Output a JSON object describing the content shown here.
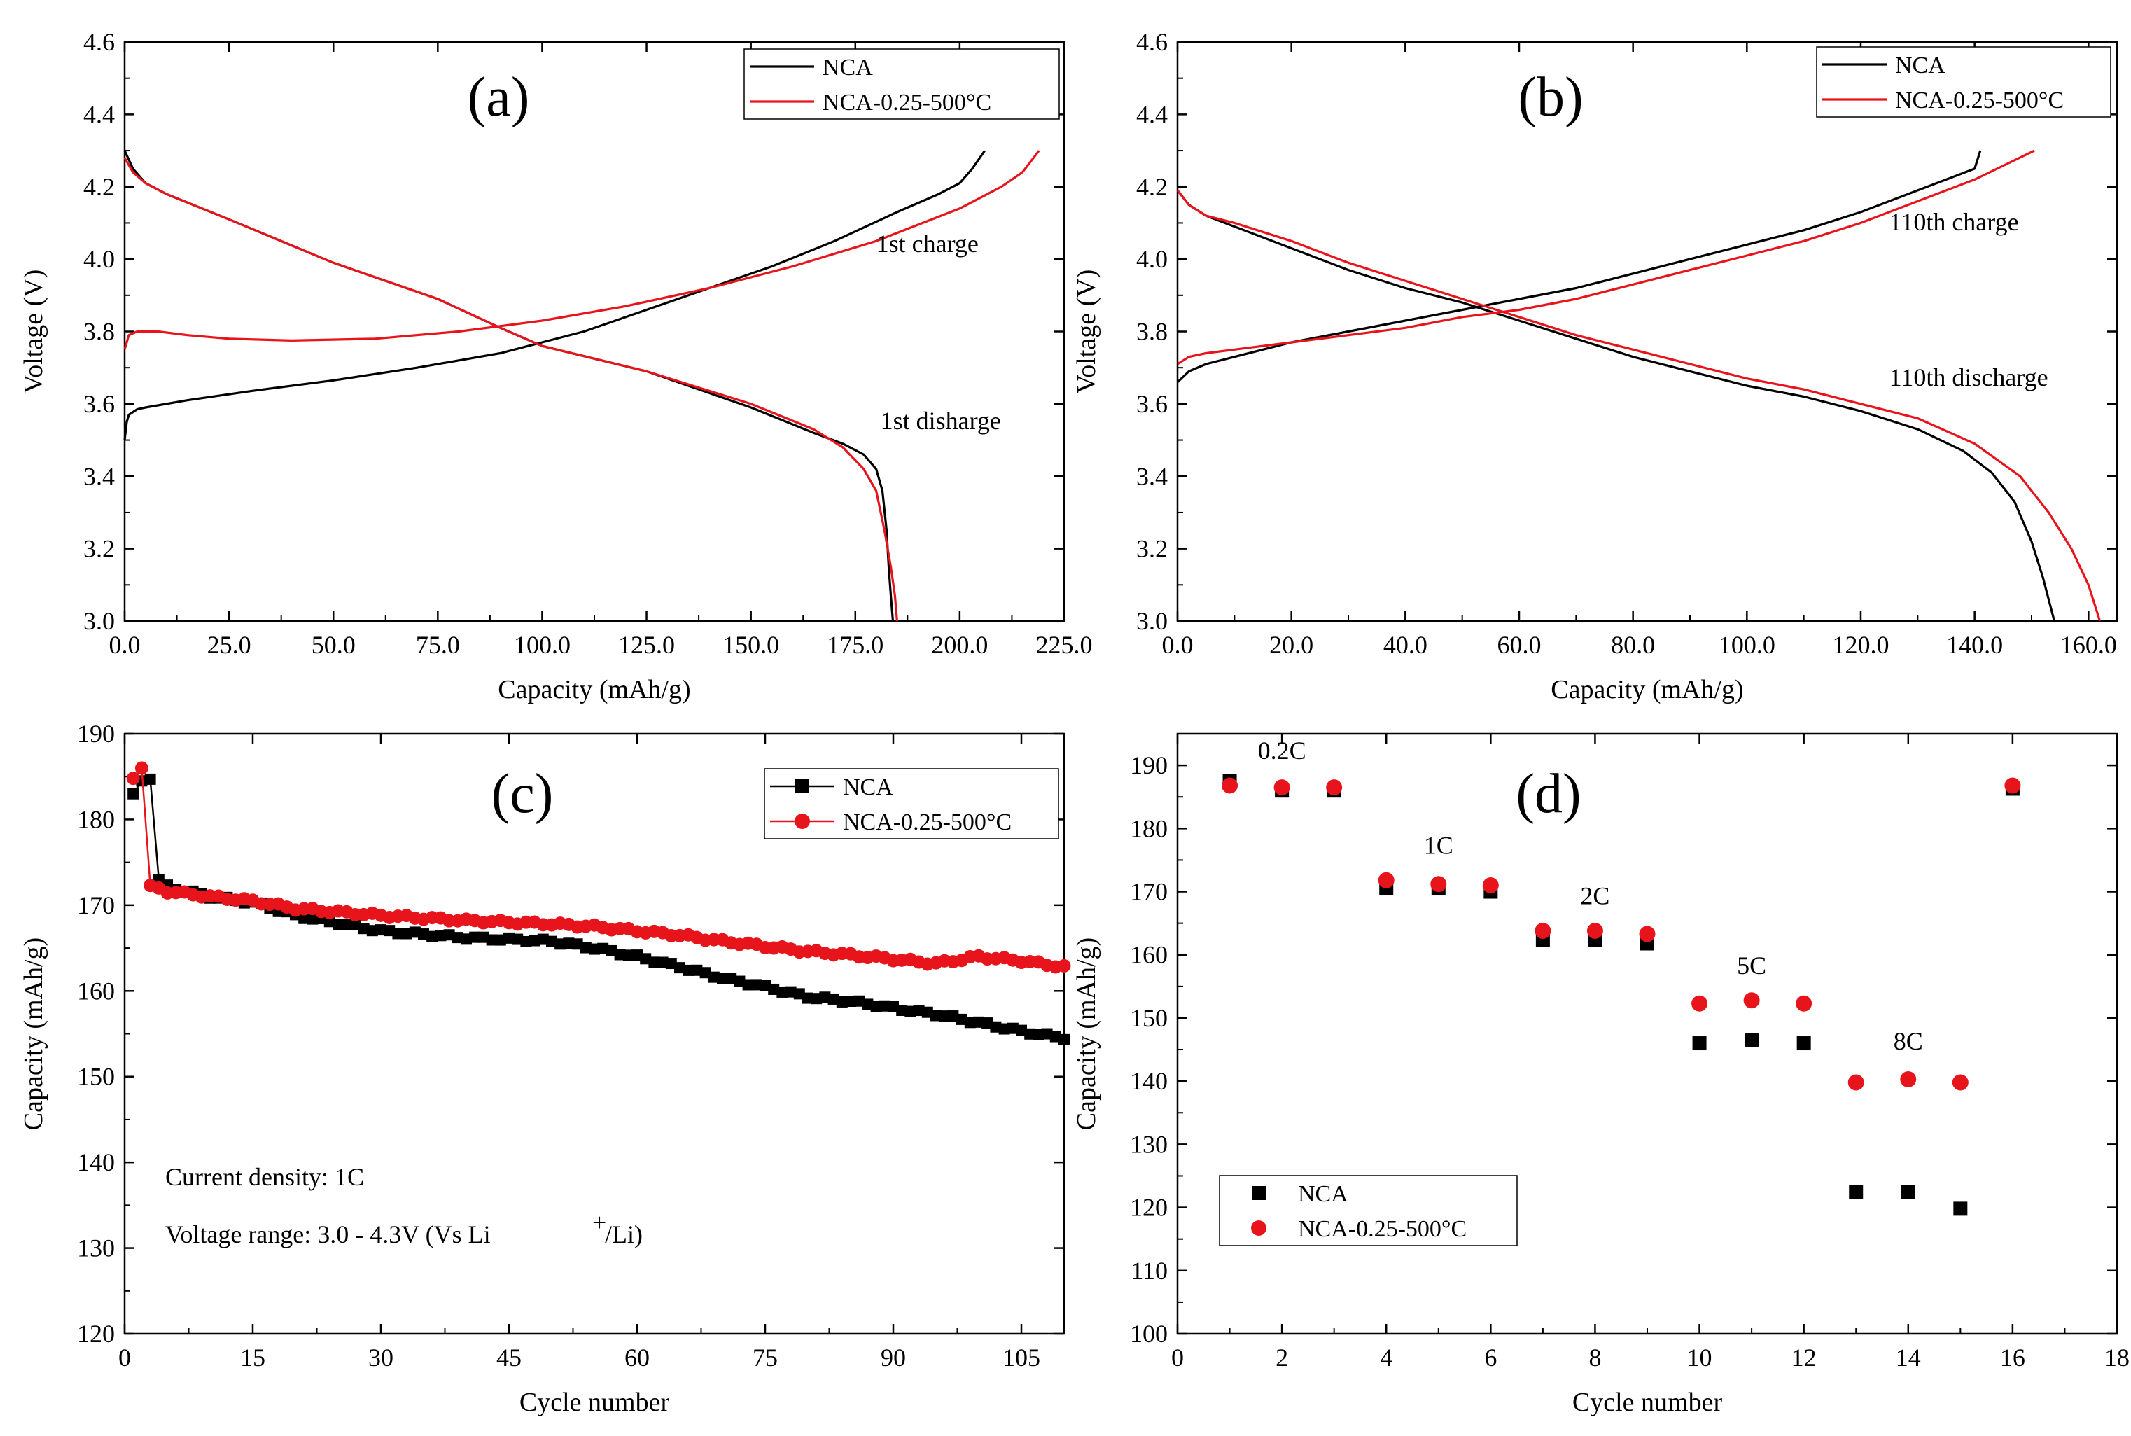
{
  "chart_data": [
    {
      "type": "line",
      "panel_label": "(a)",
      "xlabel": "Capacity (mAh/g)",
      "ylabel": "Voltage (V)",
      "xlim": [
        0,
        225
      ],
      "ylim": [
        3.0,
        4.6
      ],
      "xticks": [
        0,
        25,
        50,
        75,
        100,
        125,
        150,
        175,
        200,
        225
      ],
      "yticks": [
        3.0,
        3.2,
        3.4,
        3.6,
        3.8,
        4.0,
        4.2,
        4.4,
        4.6
      ],
      "grid": false,
      "legend_position": "top-right",
      "legend": [
        {
          "label": "NCA",
          "color": "#000000"
        },
        {
          "label": "NCA-0.25-500°C",
          "color": "#e8141b"
        }
      ],
      "annotations": [
        {
          "text": "1st charge",
          "x": 180,
          "y": 4.02
        },
        {
          "text": "1st disharge",
          "x": 181,
          "y": 3.53
        }
      ],
      "series": [
        {
          "name": "NCA charge",
          "color": "#000000",
          "x": [
            0,
            0.5,
            1,
            3,
            5,
            15,
            30,
            50,
            70,
            90,
            100,
            110,
            125,
            140,
            155,
            170,
            185,
            195,
            200,
            203,
            206
          ],
          "y": [
            3.5,
            3.55,
            3.57,
            3.585,
            3.59,
            3.61,
            3.635,
            3.665,
            3.7,
            3.74,
            3.77,
            3.8,
            3.86,
            3.92,
            3.98,
            4.05,
            4.13,
            4.18,
            4.21,
            4.25,
            4.3
          ]
        },
        {
          "name": "NCA discharge",
          "color": "#000000",
          "x": [
            0,
            2,
            5,
            10,
            25,
            50,
            75,
            90,
            100,
            125,
            150,
            165,
            172,
            177,
            180,
            181.5,
            182.5,
            183,
            183.5,
            184
          ],
          "y": [
            4.3,
            4.25,
            4.21,
            4.18,
            4.11,
            3.99,
            3.89,
            3.81,
            3.76,
            3.69,
            3.59,
            3.52,
            3.49,
            3.46,
            3.42,
            3.36,
            3.25,
            3.15,
            3.07,
            3.0
          ]
        },
        {
          "name": "NCA-0.25-500°C charge",
          "color": "#e8141b",
          "x": [
            0,
            1,
            3,
            8,
            15,
            25,
            40,
            60,
            80,
            100,
            120,
            140,
            160,
            180,
            200,
            210,
            215,
            219
          ],
          "y": [
            3.75,
            3.79,
            3.8,
            3.8,
            3.79,
            3.78,
            3.775,
            3.78,
            3.8,
            3.83,
            3.87,
            3.92,
            3.98,
            4.05,
            4.14,
            4.2,
            4.24,
            4.3
          ]
        },
        {
          "name": "NCA-0.25-500°C discharge",
          "color": "#e8141b",
          "x": [
            0,
            2,
            5,
            10,
            25,
            50,
            75,
            90,
            100,
            125,
            150,
            165,
            172,
            177,
            180,
            182,
            183.5,
            184.5,
            185
          ],
          "y": [
            4.28,
            4.24,
            4.21,
            4.18,
            4.11,
            3.99,
            3.89,
            3.81,
            3.76,
            3.69,
            3.6,
            3.53,
            3.48,
            3.42,
            3.36,
            3.25,
            3.15,
            3.07,
            3.0
          ]
        }
      ]
    },
    {
      "type": "line",
      "panel_label": "(b)",
      "xlabel": "Capacity (mAh/g)",
      "ylabel": "Voltage (V)",
      "xlim": [
        0,
        165
      ],
      "ylim": [
        3.0,
        4.6
      ],
      "xticks": [
        0,
        20,
        40,
        60,
        80,
        100,
        120,
        140,
        160
      ],
      "yticks": [
        3.0,
        3.2,
        3.4,
        3.6,
        3.8,
        4.0,
        4.2,
        4.4,
        4.6
      ],
      "grid": false,
      "legend_position": "top-right",
      "legend": [
        {
          "label": "NCA",
          "color": "#000000"
        },
        {
          "label": "NCA-0.25-500°C",
          "color": "#e8141b"
        }
      ],
      "annotations": [
        {
          "text": "110th  charge",
          "x": 125,
          "y": 4.08
        },
        {
          "text": "110th  discharge",
          "x": 125,
          "y": 3.65
        }
      ],
      "series": [
        {
          "name": "NCA charge",
          "color": "#000000",
          "x": [
            0,
            2,
            5,
            10,
            20,
            30,
            40,
            50,
            60,
            70,
            80,
            90,
            100,
            110,
            120,
            130,
            140,
            141
          ],
          "y": [
            3.66,
            3.69,
            3.71,
            3.73,
            3.77,
            3.8,
            3.83,
            3.86,
            3.89,
            3.92,
            3.96,
            4.0,
            4.04,
            4.08,
            4.13,
            4.19,
            4.25,
            4.3
          ]
        },
        {
          "name": "NCA discharge",
          "color": "#000000",
          "x": [
            0,
            2,
            5,
            10,
            20,
            30,
            40,
            50,
            60,
            70,
            80,
            90,
            100,
            110,
            120,
            130,
            138,
            143,
            147,
            150,
            152,
            154
          ],
          "y": [
            4.19,
            4.15,
            4.12,
            4.09,
            4.03,
            3.97,
            3.92,
            3.88,
            3.83,
            3.78,
            3.73,
            3.69,
            3.65,
            3.62,
            3.58,
            3.53,
            3.47,
            3.41,
            3.33,
            3.22,
            3.12,
            3.0
          ]
        },
        {
          "name": "NCA-0.25-500°C charge",
          "color": "#e8141b",
          "x": [
            0,
            2,
            5,
            10,
            20,
            30,
            40,
            50,
            60,
            70,
            80,
            90,
            100,
            110,
            120,
            130,
            140,
            150.5
          ],
          "y": [
            3.71,
            3.73,
            3.74,
            3.75,
            3.77,
            3.79,
            3.81,
            3.84,
            3.86,
            3.89,
            3.93,
            3.97,
            4.01,
            4.05,
            4.1,
            4.16,
            4.22,
            4.3
          ]
        },
        {
          "name": "NCA-0.25-500°C discharge",
          "color": "#e8141b",
          "x": [
            0,
            2,
            5,
            10,
            20,
            30,
            40,
            50,
            60,
            70,
            80,
            90,
            100,
            110,
            120,
            130,
            140,
            148,
            153,
            157,
            160,
            162
          ],
          "y": [
            4.19,
            4.15,
            4.12,
            4.1,
            4.05,
            3.99,
            3.94,
            3.89,
            3.84,
            3.79,
            3.75,
            3.71,
            3.67,
            3.64,
            3.6,
            3.56,
            3.49,
            3.4,
            3.3,
            3.2,
            3.1,
            3.0
          ]
        }
      ]
    },
    {
      "type": "line",
      "panel_label": "(c)",
      "xlabel": "Cycle number",
      "ylabel": "Capacity (mAh/g)",
      "xlim": [
        0,
        110
      ],
      "ylim": [
        120,
        190
      ],
      "xticks": [
        0,
        15,
        30,
        45,
        60,
        75,
        90,
        105
      ],
      "yticks": [
        120,
        130,
        140,
        150,
        160,
        170,
        180,
        190
      ],
      "grid": false,
      "legend_position": "top-right",
      "legend": [
        {
          "label": "NCA",
          "color": "#000000",
          "marker": "square"
        },
        {
          "label": "NCA-0.25-500°C",
          "color": "#e8141b",
          "marker": "circle"
        }
      ],
      "notes": [
        "Current density: 1C",
        "Voltage range: 3.0 - 4.3V (Vs Li",
        "+",
        "/Li)"
      ],
      "series": [
        {
          "name": "NCA",
          "color": "#000000",
          "marker": "square",
          "kx": [
            1,
            2,
            3,
            4,
            5,
            10,
            15,
            20,
            30,
            40,
            50,
            55,
            60,
            65,
            70,
            75,
            80,
            85,
            90,
            95,
            100,
            105,
            110
          ],
          "ky": [
            183,
            184.5,
            184.7,
            173,
            172.2,
            171,
            170.3,
            168.8,
            167.0,
            166.2,
            165.8,
            165.0,
            164.0,
            162.8,
            161.5,
            160.5,
            159.3,
            158.8,
            158.0,
            157.3,
            156.3,
            155.3,
            154.5
          ]
        },
        {
          "name": "NCA-0.25-500°C",
          "color": "#e8141b",
          "marker": "circle",
          "kx": [
            1,
            2,
            3,
            4,
            5,
            10,
            15,
            20,
            30,
            40,
            50,
            55,
            60,
            65,
            70,
            75,
            80,
            85,
            90,
            95,
            100,
            105,
            110
          ],
          "ky": [
            184.8,
            186.0,
            172.3,
            172.0,
            171.6,
            171.0,
            170.5,
            169.6,
            168.8,
            168.2,
            167.8,
            167.5,
            167.0,
            166.5,
            165.8,
            165.2,
            164.6,
            164.2,
            163.7,
            163.2,
            164.0,
            163.5,
            162.8
          ]
        }
      ]
    },
    {
      "type": "scatter",
      "panel_label": "(d)",
      "xlabel": "Cycle number",
      "ylabel": "Capacity (mAh/g)",
      "xlim": [
        0,
        18
      ],
      "ylim": [
        100,
        195
      ],
      "xticks": [
        0,
        2,
        4,
        6,
        8,
        10,
        12,
        14,
        16,
        18
      ],
      "yticks": [
        100,
        110,
        120,
        130,
        140,
        150,
        160,
        170,
        180,
        190
      ],
      "grid": false,
      "legend_position": "bottom-left",
      "legend": [
        {
          "label": "NCA",
          "color": "#000000",
          "marker": "square"
        },
        {
          "label": "NCA-0.25-500°C",
          "color": "#e8141b",
          "marker": "circle"
        }
      ],
      "annotations": [
        {
          "text": "0.2C",
          "x": 2.0,
          "y": 191
        },
        {
          "text": "1C",
          "x": 5.0,
          "y": 176
        },
        {
          "text": "2C",
          "x": 8.0,
          "y": 168
        },
        {
          "text": "5C",
          "x": 11.0,
          "y": 157
        },
        {
          "text": "8C",
          "x": 14.0,
          "y": 145
        }
      ],
      "series": [
        {
          "name": "NCA",
          "color": "#000000",
          "marker": "square",
          "x": [
            1,
            2,
            3,
            4,
            5,
            6,
            7,
            8,
            9,
            10,
            11,
            12,
            13,
            14,
            15,
            16
          ],
          "y": [
            187.5,
            186.0,
            186.0,
            170.5,
            170.5,
            170.0,
            162.3,
            162.3,
            161.8,
            146.0,
            146.5,
            146.0,
            122.5,
            122.5,
            119.8,
            186.3
          ]
        },
        {
          "name": "NCA-0.25-500°C",
          "color": "#e8141b",
          "marker": "circle",
          "x": [
            1,
            2,
            3,
            4,
            5,
            6,
            7,
            8,
            9,
            10,
            11,
            12,
            13,
            14,
            15,
            16
          ],
          "y": [
            186.8,
            186.5,
            186.5,
            171.8,
            171.2,
            171.0,
            163.8,
            163.8,
            163.3,
            152.3,
            152.8,
            152.3,
            139.8,
            140.3,
            139.8,
            186.8
          ]
        }
      ]
    }
  ]
}
